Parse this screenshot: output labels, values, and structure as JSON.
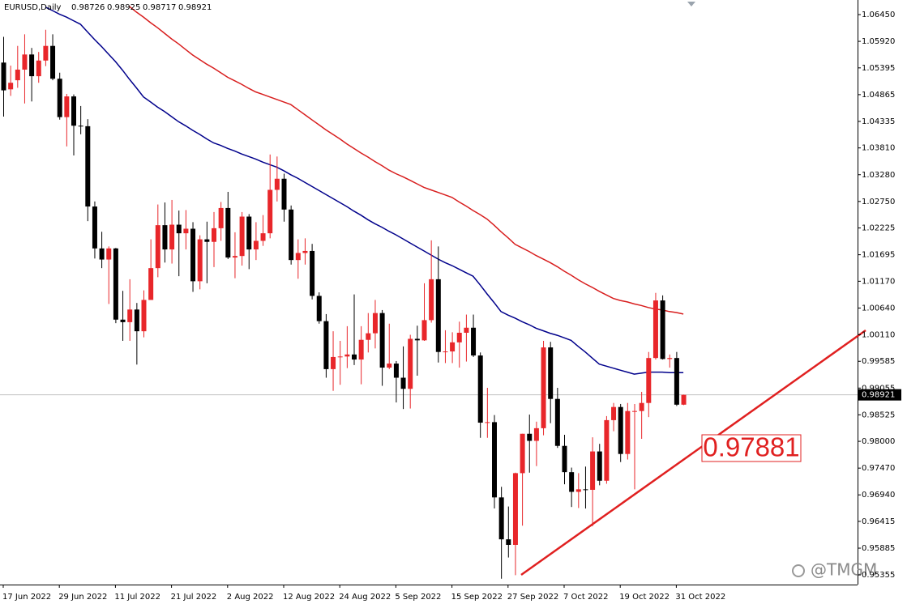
{
  "chart_data": {
    "type": "candlestick",
    "title": "EURUSD,Daily",
    "up_color": "#e8262a",
    "down_color": "#000000",
    "ylim": [
      0.95164,
      1.06739
    ],
    "yticks": [
      {
        "value": 1.0645,
        "label": "1.06450"
      },
      {
        "value": 1.0592,
        "label": "1.05920"
      },
      {
        "value": 1.05395,
        "label": "1.05395"
      },
      {
        "value": 1.04865,
        "label": "1.04865"
      },
      {
        "value": 1.04335,
        "label": "1.04335"
      },
      {
        "value": 1.0381,
        "label": "1.03810"
      },
      {
        "value": 1.0328,
        "label": "1.03280"
      },
      {
        "value": 1.0275,
        "label": "1.02750"
      },
      {
        "value": 1.02225,
        "label": "1.02225"
      },
      {
        "value": 1.01695,
        "label": "1.01695"
      },
      {
        "value": 1.0117,
        "label": "1.01170"
      },
      {
        "value": 1.0064,
        "label": "1.00640"
      },
      {
        "value": 1.0011,
        "label": "1.00110"
      },
      {
        "value": 0.99585,
        "label": "0.99585"
      },
      {
        "value": 0.99055,
        "label": "0.99055"
      },
      {
        "value": 0.98525,
        "label": "0.98525"
      },
      {
        "value": 0.98,
        "label": "0.98000"
      },
      {
        "value": 0.9747,
        "label": "0.97470"
      },
      {
        "value": 0.9694,
        "label": "0.96940"
      },
      {
        "value": 0.96415,
        "label": "0.96415"
      },
      {
        "value": 0.95885,
        "label": "0.95885"
      },
      {
        "value": 0.95355,
        "label": "0.95355"
      }
    ],
    "categories": [
      "17 Jun 2022",
      null,
      null,
      null,
      null,
      null,
      null,
      null,
      "29 Jun 2022",
      null,
      null,
      null,
      null,
      null,
      null,
      null,
      "11 Jul 2022",
      null,
      null,
      null,
      null,
      null,
      null,
      null,
      "21 Jul 2022",
      null,
      null,
      null,
      null,
      null,
      null,
      null,
      "2 Aug 2022",
      null,
      null,
      null,
      null,
      null,
      null,
      null,
      "12 Aug 2022",
      null,
      null,
      null,
      null,
      null,
      null,
      null,
      "24 Aug 2022",
      null,
      null,
      null,
      null,
      null,
      null,
      null,
      "5 Sep 2022",
      null,
      null,
      null,
      null,
      null,
      null,
      null,
      "15 Sep 2022",
      null,
      null,
      null,
      null,
      null,
      null,
      null,
      "27 Sep 2022",
      null,
      null,
      null,
      null,
      null,
      null,
      null,
      "7 Oct 2022",
      null,
      null,
      null,
      null,
      null,
      null,
      null,
      "19 Oct 2022",
      null,
      null,
      null,
      null,
      null,
      null,
      null,
      "31 Oct 2022",
      null
    ],
    "open": [
      1.055,
      1.0497,
      1.0515,
      1.0536,
      1.0566,
      1.0523,
      1.0554,
      1.0583,
      1.0518,
      1.0442,
      1.0483,
      1.0425,
      1.0424,
      1.0265,
      1.0182,
      1.016,
      1.0182,
      1.0041,
      1.0036,
      1.0061,
      1.0018,
      1.008,
      1.0143,
      1.0228,
      1.018,
      1.0229,
      1.0212,
      1.0221,
      1.0117,
      1.02,
      1.0195,
      1.0222,
      1.0262,
      1.0164,
      1.0167,
      1.0245,
      1.018,
      1.0197,
      1.0212,
      1.0298,
      1.032,
      1.0259,
      1.0159,
      1.0173,
      1.0177,
      1.0088,
      1.0038,
      0.9943,
      0.9967,
      0.9968,
      0.9972,
      0.9962,
      1.0001,
      1.0014,
      1.0054,
      0.9946,
      0.9954,
      0.9926,
      0.9904,
      1.0003,
      1.0,
      1.004,
      1.0121,
      0.9977,
      0.9978,
      0.9996,
      1.0015,
      1.0025,
      0.997,
      0.9837,
      0.9838,
      0.9689,
      0.9606,
      0.9595,
      0.9737,
      0.9815,
      0.9801,
      0.9826,
      0.9986,
      0.9884,
      0.9791,
      0.9739,
      0.97,
      0.9705,
      0.9704,
      0.978,
      0.9722,
      0.9842,
      0.9868,
      0.9775,
      0.986,
      0.986,
      0.9876,
      0.9965,
      1.0079,
      0.9963,
      0.9965,
      0.98726
    ],
    "high": [
      1.0601,
      1.0544,
      1.0583,
      1.0606,
      1.0579,
      1.0571,
      1.0615,
      1.0606,
      1.053,
      1.0488,
      1.0487,
      1.0464,
      1.0438,
      1.0275,
      1.0215,
      1.0186,
      1.0183,
      1.0098,
      1.0121,
      1.0074,
      1.0099,
      1.02,
      1.0269,
      1.0273,
      1.0278,
      1.0257,
      1.0258,
      1.0234,
      1.0208,
      1.0235,
      1.0254,
      1.0274,
      1.0294,
      1.0214,
      1.0254,
      1.025,
      1.0234,
      1.0248,
      1.0368,
      1.0364,
      1.033,
      1.0267,
      1.02,
      1.0202,
      1.0191,
      1.0095,
      1.0052,
      1.0018,
      0.9999,
      1.0028,
      1.0091,
      1.0028,
      1.0054,
      1.008,
      1.006,
      1.0033,
      0.9959,
      0.9988,
      1.0011,
      1.0029,
      1.0113,
      1.0198,
      1.0186,
      1.002,
      1.0016,
      1.0037,
      1.0051,
      1.0051,
      0.9976,
      0.9906,
      0.9852,
      0.971,
      0.9671,
      0.9738,
      0.9815,
      0.9853,
      0.9839,
      0.9999,
      0.9997,
      0.9906,
      0.9813,
      0.9748,
      0.9737,
      0.975,
      0.9808,
      0.9795,
      0.985,
      0.9876,
      0.9874,
      0.9876,
      0.9874,
      0.9898,
      0.9977,
      1.0094,
      1.0089,
      0.9972,
      0.9977,
      0.98925
    ],
    "low": [
      1.0443,
      1.0484,
      1.05,
      1.0469,
      1.0473,
      1.051,
      1.0543,
      1.0515,
      1.0437,
      1.0384,
      1.0366,
      1.0408,
      1.0236,
      1.0162,
      1.0143,
      1.0072,
      1.0034,
      0.9999,
      0.9999,
      0.9952,
      1.0006,
      1.008,
      1.0125,
      1.0154,
      1.0152,
      1.0127,
      1.018,
      1.0096,
      1.0101,
      1.0113,
      1.0145,
      1.0197,
      1.0161,
      1.0123,
      1.0148,
      1.0141,
      1.0159,
      1.0187,
      1.0202,
      1.0275,
      1.0235,
      1.015,
      1.0122,
      1.015,
      1.0081,
      1.0033,
      0.9926,
      0.99,
      0.9912,
      0.9945,
      0.9951,
      0.9913,
      0.9976,
      0.9984,
      0.991,
      0.9943,
      0.9877,
      0.9864,
      0.9865,
      0.993,
      0.9999,
      1.0035,
      0.9956,
      0.9955,
      0.9955,
      0.9946,
      0.9958,
      0.9967,
      0.9807,
      0.9807,
      0.9667,
      0.9528,
      0.957,
      0.9535,
      0.9633,
      0.9738,
      0.9751,
      0.9812,
      0.9836,
      0.9787,
      0.9715,
      0.967,
      0.9668,
      0.9667,
      0.9632,
      0.9713,
      0.9716,
      0.982,
      0.9759,
      0.9764,
      0.9705,
      0.9805,
      0.9848,
      0.9962,
      0.9962,
      0.9946,
      0.987,
      0.98717
    ],
    "close": [
      1.0495,
      1.051,
      1.0536,
      1.0566,
      1.0523,
      1.0554,
      1.0583,
      1.0518,
      1.0442,
      1.0483,
      1.0425,
      1.0424,
      1.0265,
      1.0182,
      1.016,
      1.0182,
      1.0041,
      1.0036,
      1.0061,
      1.0018,
      1.008,
      1.0143,
      1.0228,
      1.018,
      1.0229,
      1.0212,
      1.0221,
      1.0117,
      1.02,
      1.0195,
      1.0222,
      1.0262,
      1.0164,
      1.0167,
      1.0245,
      1.018,
      1.0197,
      1.0212,
      1.0298,
      1.032,
      1.0259,
      1.0159,
      1.0173,
      1.0177,
      1.0088,
      1.0038,
      0.9943,
      0.9967,
      0.9968,
      0.9972,
      0.9962,
      1.0001,
      1.0014,
      1.0054,
      0.9946,
      0.9954,
      0.9926,
      0.9904,
      1.0003,
      1.0,
      1.004,
      1.0121,
      0.9977,
      0.9978,
      0.9996,
      1.0015,
      1.0025,
      0.997,
      0.9837,
      0.9838,
      0.9689,
      0.9606,
      0.9595,
      0.9737,
      0.9815,
      0.9801,
      0.9826,
      0.9986,
      0.9884,
      0.9791,
      0.9739,
      0.97,
      0.9705,
      0.9704,
      0.978,
      0.9722,
      0.9842,
      0.9868,
      0.9775,
      0.986,
      0.986,
      0.9876,
      0.9965,
      1.0079,
      0.9963,
      0.9965,
      0.98726,
      0.98921
    ],
    "moving_averages": [
      {
        "color": "#00008b",
        "values": [
          null,
          null,
          null,
          null,
          null,
          null,
          1.066,
          1.0653,
          1.0646,
          1.064,
          1.0633,
          1.0626,
          1.0611,
          1.0596,
          1.0582,
          1.0567,
          1.0552,
          1.0535,
          1.0517,
          1.05,
          1.0482,
          1.0472,
          1.0462,
          1.0453,
          1.0443,
          1.0433,
          1.0425,
          1.0416,
          1.0408,
          1.0399,
          1.0391,
          1.0386,
          1.038,
          1.0375,
          1.0369,
          1.0364,
          1.0359,
          1.0353,
          1.0348,
          1.0343,
          1.0336,
          1.0328,
          1.0321,
          1.0313,
          1.0305,
          1.0297,
          1.0289,
          1.0281,
          1.0273,
          1.0265,
          1.0256,
          1.0248,
          1.0239,
          1.0231,
          1.0224,
          1.0216,
          1.0209,
          1.0201,
          1.0193,
          1.0185,
          1.0177,
          1.0169,
          1.0161,
          1.0154,
          1.0148,
          1.0141,
          1.0134,
          1.0127,
          1.011,
          1.0092,
          1.0075,
          1.0057,
          1.005,
          1.0044,
          1.0037,
          1.0031,
          1.0024,
          1.0019,
          1.0014,
          1.001,
          1.0005,
          1.0,
          0.9988,
          0.9977,
          0.9965,
          0.9953,
          0.9949,
          0.9945,
          0.9941,
          0.9937,
          0.9933,
          0.9935,
          0.9937,
          0.9937,
          0.9937,
          0.9936,
          0.9936,
          0.9936
        ]
      },
      {
        "color": "#d81e1e",
        "values": [
          null,
          null,
          null,
          null,
          null,
          null,
          null,
          null,
          null,
          null,
          null,
          null,
          null,
          null,
          null,
          null,
          null,
          null,
          1.0661,
          1.065,
          1.064,
          1.0629,
          1.0619,
          1.0608,
          1.0597,
          1.0587,
          1.0576,
          1.0565,
          1.0556,
          1.0547,
          1.0539,
          1.053,
          1.0521,
          1.0514,
          1.0507,
          1.0499,
          1.0492,
          1.0487,
          1.0482,
          1.0477,
          1.0472,
          1.0467,
          1.0457,
          1.0447,
          1.0437,
          1.0427,
          1.0417,
          1.0408,
          1.0399,
          1.0389,
          1.038,
          1.0371,
          1.0363,
          1.0354,
          1.0346,
          1.0337,
          1.033,
          1.0324,
          1.0317,
          1.031,
          1.0303,
          1.0298,
          1.0293,
          1.0288,
          1.0283,
          1.0274,
          1.0266,
          1.0257,
          1.0249,
          1.024,
          1.0228,
          1.0215,
          1.0203,
          1.019,
          1.0183,
          1.0176,
          1.0168,
          1.0161,
          1.0154,
          1.0146,
          1.0137,
          1.0129,
          1.012,
          1.0112,
          1.0105,
          1.0097,
          1.009,
          1.0083,
          1.0079,
          1.0076,
          1.0072,
          1.0069,
          1.0065,
          1.0062,
          1.006,
          1.0057,
          1.0055,
          1.0052
        ]
      }
    ],
    "annotation": "0.97881",
    "watermark": "@TMGM"
  }
}
